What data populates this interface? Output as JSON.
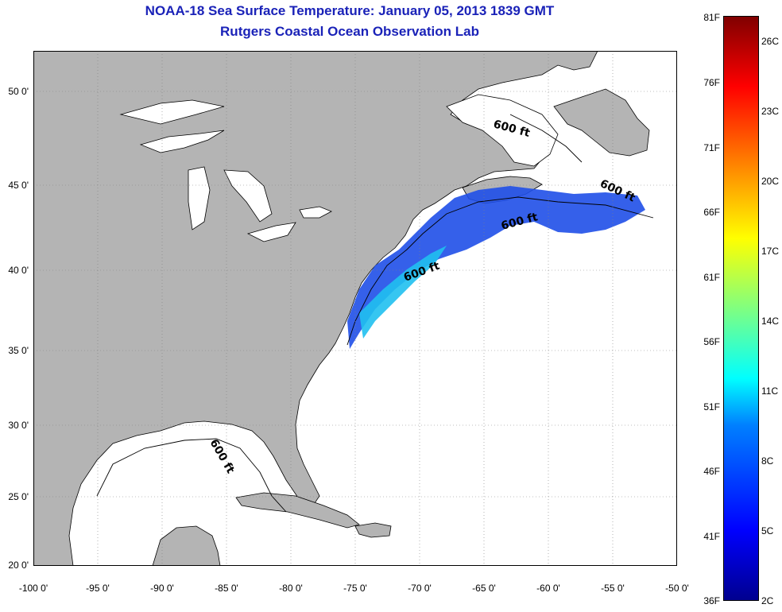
{
  "header": {
    "title": "NOAA-18 Sea Surface Temperature:  January 05, 2013 1839 GMT",
    "subtitle": "Rutgers Coastal Ocean Observation Lab"
  },
  "map": {
    "lat_labels": [
      "50 0'",
      "45 0'",
      "40 0'",
      "35 0'",
      "30 0'",
      "25 0'",
      "20 0'"
    ],
    "lon_labels": [
      "-100 0'",
      "-95 0'",
      "-90 0'",
      "-85 0'",
      "-80 0'",
      "-75 0'",
      "-70 0'",
      "-65 0'",
      "-60 0'",
      "-55 0'",
      "-50 0'"
    ],
    "isobath_labels": [
      "600 ft",
      "600 ft",
      "600 ft",
      "600 ft",
      "600 ft"
    ],
    "land_color": "#b4b4b4",
    "ocean_color": "#ffffff"
  },
  "colorbar": {
    "fahrenheit_labels": [
      "81F",
      "76F",
      "71F",
      "66F",
      "61F",
      "56F",
      "51F",
      "46F",
      "41F",
      "36F"
    ],
    "celsius_labels": [
      "26C",
      "23C",
      "20C",
      "17C",
      "14C",
      "11C",
      "8C",
      "5C",
      "2C"
    ],
    "range_c": [
      2,
      27
    ],
    "colors": [
      "#00008f",
      "#0000ff",
      "#0080ff",
      "#00ffff",
      "#80ff80",
      "#ffff00",
      "#ff8000",
      "#ff0000",
      "#800000"
    ]
  }
}
